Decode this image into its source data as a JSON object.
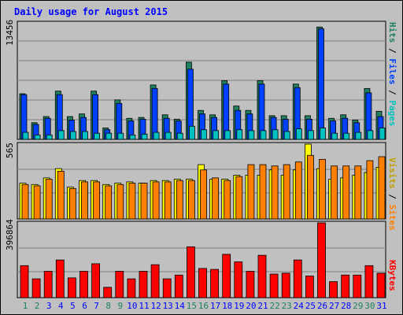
{
  "chart_data": {
    "type": "bar",
    "title": "Daily usage for August 2015",
    "x": [
      "1",
      "2",
      "3",
      "4",
      "5",
      "6",
      "7",
      "8",
      "9",
      "10",
      "11",
      "12",
      "13",
      "14",
      "15",
      "16",
      "17",
      "18",
      "19",
      "20",
      "21",
      "22",
      "23",
      "24",
      "25",
      "26",
      "27",
      "28",
      "29",
      "30",
      "31"
    ],
    "weekend_days": [
      "1",
      "2",
      "8",
      "9",
      "15",
      "16",
      "22",
      "23",
      "29",
      "30"
    ],
    "colors": {
      "hits": "#00c0c0",
      "files": "#0040ff",
      "pages": "#00c0c0",
      "visits": "#ffff00",
      "sites": "#ff8000",
      "kbytes": "#ff0000",
      "hits_back": "#208060",
      "title": "#0000ff",
      "weekday_label": "#0000ff",
      "weekend_label": "#208060",
      "panel": "#c0c0c0",
      "grid": "#808080"
    },
    "panels": [
      {
        "id": "hits-files-pages",
        "max_label": "13456",
        "ymax": 13456,
        "legend": [
          "Pages",
          "Files",
          "Hits"
        ],
        "series": [
          {
            "name": "Hits",
            "values": [
              5200,
              1900,
              2600,
              5500,
              2600,
              2900,
              5500,
              1300,
              4500,
              2400,
              2500,
              6200,
              2800,
              2300,
              8800,
              3300,
              2800,
              6700,
              3800,
              3300,
              6700,
              2700,
              2700,
              6300,
              2700,
              12800,
              2400,
              2800,
              2200,
              5800,
              3200
            ]
          },
          {
            "name": "Files",
            "values": [
              5100,
              1700,
              2400,
              5100,
              2200,
              2500,
              5100,
              1100,
              4100,
              2100,
              2300,
              5800,
              2400,
              2100,
              8000,
              2900,
              2500,
              6300,
              3300,
              2900,
              6300,
              2500,
              2300,
              5900,
              2300,
              12600,
              2100,
              2400,
              1900,
              5300,
              2600
            ]
          },
          {
            "name": "Pages",
            "values": [
              800,
              500,
              500,
              1000,
              900,
              900,
              700,
              700,
              700,
              500,
              600,
              800,
              800,
              700,
              1500,
              1100,
              1000,
              1000,
              1100,
              1000,
              1000,
              1100,
              900,
              1200,
              1000,
              1300,
              700,
              700,
              800,
              1000,
              1300
            ]
          }
        ]
      },
      {
        "id": "sites-visits",
        "max_label": "565",
        "ymax": 565,
        "legend": [
          "Sites",
          "Visits"
        ],
        "series": [
          {
            "name": "Visits",
            "values": [
              270,
              260,
              310,
              380,
              240,
              290,
              290,
              260,
              270,
              280,
              270,
              290,
              290,
              300,
              300,
              410,
              300,
              300,
              330,
              330,
              330,
              370,
              330,
              370,
              565,
              380,
              300,
              310,
              330,
              350,
              390
            ]
          },
          {
            "name": "Sites",
            "values": [
              260,
              250,
              300,
              360,
              230,
              280,
              280,
              250,
              260,
              270,
              270,
              280,
              280,
              290,
              290,
              370,
              310,
              290,
              320,
              410,
              410,
              400,
              410,
              430,
              480,
              450,
              400,
              400,
              400,
              440,
              470
            ]
          }
        ]
      },
      {
        "id": "kbytes",
        "max_label": "396864",
        "ymax": 396864,
        "legend": [
          "KBytes"
        ],
        "series": [
          {
            "name": "KBytes",
            "values": [
              170000,
              100000,
              140000,
              200000,
              105000,
              140000,
              180000,
              55000,
              140000,
              100000,
              140000,
              175000,
              100000,
              120000,
              270000,
              155000,
              150000,
              230000,
              190000,
              140000,
              225000,
              125000,
              130000,
              200000,
              115000,
              396864,
              85000,
              120000,
              120000,
              170000,
              130000
            ]
          }
        ]
      }
    ]
  }
}
